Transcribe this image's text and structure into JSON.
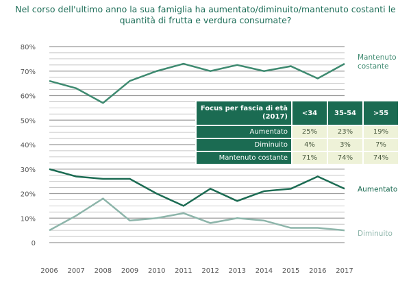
{
  "chart_data": {
    "type": "line",
    "title": "Nel corso dell'ultimo anno la sua famiglia ha aumentato/diminuito/mantenuto costanti le quantità di frutta e verdura consumate?",
    "x": [
      "2006",
      "2007",
      "2008",
      "2009",
      "2010",
      "2011",
      "2012",
      "2013",
      "2014",
      "2015",
      "2016",
      "2017"
    ],
    "ylim": [
      0,
      80
    ],
    "yticks": [
      "0",
      "10%",
      "20%",
      "30%",
      "40%",
      "50%",
      "60%",
      "70%",
      "80%"
    ],
    "series": [
      {
        "name": "Mantenuto costante",
        "color": "#3e8a70",
        "values": [
          66,
          63,
          57,
          66,
          70,
          73,
          70,
          72.5,
          70,
          72,
          67,
          73
        ]
      },
      {
        "name": "Aumentato",
        "color": "#1b6b52",
        "values": [
          30,
          27,
          26,
          26,
          20,
          15,
          22,
          17,
          21,
          22,
          27,
          22
        ]
      },
      {
        "name": "Diminuito",
        "color": "#8db5aa",
        "values": [
          5,
          11,
          18,
          9,
          10,
          12,
          8,
          10,
          9,
          6,
          6,
          5
        ]
      }
    ],
    "legend_placement": "right-end-of-lines",
    "grid": true
  },
  "table": {
    "header": [
      "Focus per fascia di età (2017)",
      "<34",
      "35-54",
      ">55"
    ],
    "rows": [
      {
        "label": "Aumentato",
        "values": [
          "25%",
          "23%",
          "19%"
        ]
      },
      {
        "label": "Diminuito",
        "values": [
          "4%",
          "3%",
          "7%"
        ]
      },
      {
        "label": "Mantenuto costante",
        "values": [
          "71%",
          "74%",
          "74%"
        ]
      }
    ]
  }
}
